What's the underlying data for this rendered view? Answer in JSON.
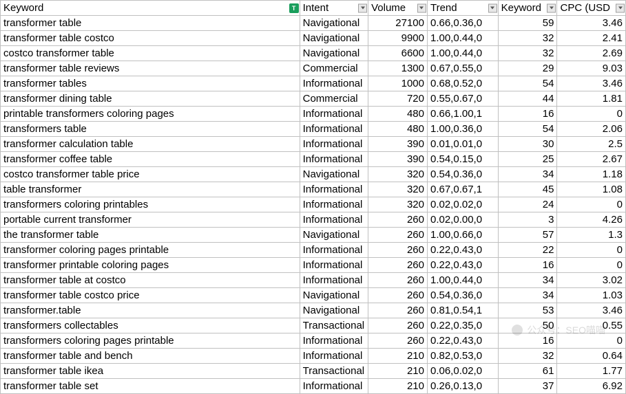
{
  "columns": [
    {
      "key": "keyword",
      "label": "Keyword",
      "class": "col-keyword",
      "align": "left",
      "filter": false,
      "badge": "T"
    },
    {
      "key": "intent",
      "label": "Intent",
      "class": "col-intent",
      "align": "left",
      "filter": true
    },
    {
      "key": "volume",
      "label": "Volume",
      "class": "col-volume",
      "align": "right",
      "filter": true
    },
    {
      "key": "trend",
      "label": "Trend",
      "class": "col-trend",
      "align": "left",
      "filter": true
    },
    {
      "key": "kd",
      "label": "Keyword",
      "class": "col-kd",
      "align": "right",
      "filter": true
    },
    {
      "key": "cpc",
      "label": "CPC (USD",
      "class": "col-cpc",
      "align": "right",
      "filter": true
    }
  ],
  "rows": [
    {
      "keyword": "transformer table",
      "intent": "Navigational",
      "volume": "27100",
      "trend": "0.66,0.36,0",
      "kd": "59",
      "cpc": "3.46"
    },
    {
      "keyword": "transformer table costco",
      "intent": "Navigational",
      "volume": "9900",
      "trend": "1.00,0.44,0",
      "kd": "32",
      "cpc": "2.41"
    },
    {
      "keyword": "costco transformer table",
      "intent": "Navigational",
      "volume": "6600",
      "trend": "1.00,0.44,0",
      "kd": "32",
      "cpc": "2.69"
    },
    {
      "keyword": "transformer table reviews",
      "intent": "Commercial",
      "volume": "1300",
      "trend": "0.67,0.55,0",
      "kd": "29",
      "cpc": "9.03"
    },
    {
      "keyword": "transformer tables",
      "intent": "Informational",
      "volume": "1000",
      "trend": "0.68,0.52,0",
      "kd": "54",
      "cpc": "3.46"
    },
    {
      "keyword": "transformer dining table",
      "intent": "Commercial",
      "volume": "720",
      "trend": "0.55,0.67,0",
      "kd": "44",
      "cpc": "1.81"
    },
    {
      "keyword": "printable transformers coloring pages",
      "intent": "Informational",
      "volume": "480",
      "trend": "0.66,1.00,1",
      "kd": "16",
      "cpc": "0"
    },
    {
      "keyword": "transformers table",
      "intent": "Informational",
      "volume": "480",
      "trend": "1.00,0.36,0",
      "kd": "54",
      "cpc": "2.06"
    },
    {
      "keyword": "transformer calculation table",
      "intent": "Informational",
      "volume": "390",
      "trend": "0.01,0.01,0",
      "kd": "30",
      "cpc": "2.5"
    },
    {
      "keyword": "transformer coffee table",
      "intent": "Informational",
      "volume": "390",
      "trend": "0.54,0.15,0",
      "kd": "25",
      "cpc": "2.67"
    },
    {
      "keyword": "costco transformer table price",
      "intent": "Navigational",
      "volume": "320",
      "trend": "0.54,0.36,0",
      "kd": "34",
      "cpc": "1.18"
    },
    {
      "keyword": "table transformer",
      "intent": "Informational",
      "volume": "320",
      "trend": "0.67,0.67,1",
      "kd": "45",
      "cpc": "1.08"
    },
    {
      "keyword": "transformers coloring printables",
      "intent": "Informational",
      "volume": "320",
      "trend": "0.02,0.02,0",
      "kd": "24",
      "cpc": "0"
    },
    {
      "keyword": "portable current transformer",
      "intent": "Informational",
      "volume": "260",
      "trend": "0.02,0.00,0",
      "kd": "3",
      "cpc": "4.26"
    },
    {
      "keyword": "the transformer table",
      "intent": "Navigational",
      "volume": "260",
      "trend": "1.00,0.66,0",
      "kd": "57",
      "cpc": "1.3"
    },
    {
      "keyword": "transformer coloring pages printable",
      "intent": "Informational",
      "volume": "260",
      "trend": "0.22,0.43,0",
      "kd": "22",
      "cpc": "0"
    },
    {
      "keyword": "transformer printable coloring pages",
      "intent": "Informational",
      "volume": "260",
      "trend": "0.22,0.43,0",
      "kd": "16",
      "cpc": "0"
    },
    {
      "keyword": "transformer table at costco",
      "intent": "Informational",
      "volume": "260",
      "trend": "1.00,0.44,0",
      "kd": "34",
      "cpc": "3.02"
    },
    {
      "keyword": "transformer table costco price",
      "intent": "Navigational",
      "volume": "260",
      "trend": "0.54,0.36,0",
      "kd": "34",
      "cpc": "1.03"
    },
    {
      "keyword": "transformer.table",
      "intent": "Navigational",
      "volume": "260",
      "trend": "0.81,0.54,1",
      "kd": "53",
      "cpc": "3.46"
    },
    {
      "keyword": "transformers collectables",
      "intent": "Transactional",
      "volume": "260",
      "trend": "0.22,0.35,0",
      "kd": "50",
      "cpc": "0.55"
    },
    {
      "keyword": "transformers coloring pages printable",
      "intent": "Informational",
      "volume": "260",
      "trend": "0.22,0.43,0",
      "kd": "16",
      "cpc": "0"
    },
    {
      "keyword": "transformer table and bench",
      "intent": "Informational",
      "volume": "210",
      "trend": "0.82,0.53,0",
      "kd": "32",
      "cpc": "0.64"
    },
    {
      "keyword": "transformer table ikea",
      "intent": "Transactional",
      "volume": "210",
      "trend": "0.06,0.02,0",
      "kd": "61",
      "cpc": "1.77"
    },
    {
      "keyword": "transformer table set",
      "intent": "Informational",
      "volume": "210",
      "trend": "0.26,0.13,0",
      "kd": "37",
      "cpc": "6.92"
    }
  ],
  "watermark": "公众号：SEO喵喵"
}
